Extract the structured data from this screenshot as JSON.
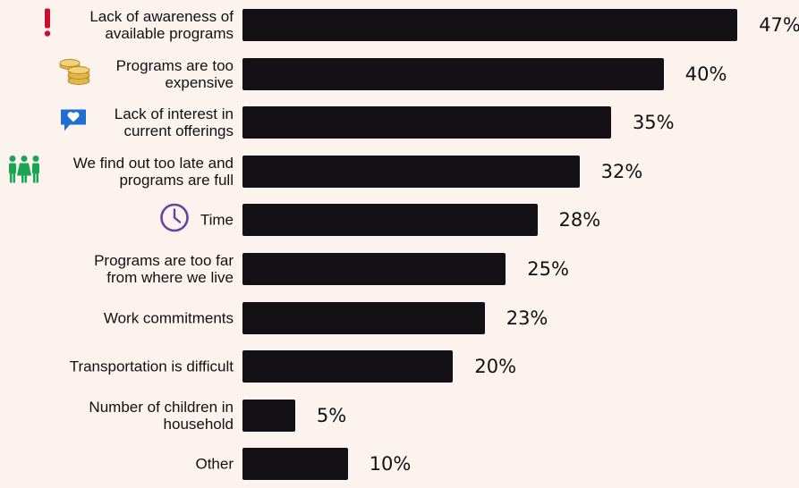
{
  "chart_data": {
    "type": "bar",
    "orientation": "horizontal",
    "categories": [
      "Lack of awareness of\navailable programs",
      "Programs are too\nexpensive",
      "Lack of interest in\ncurrent offerings",
      "We find out too late and\nprograms are full",
      "Time",
      "Programs are too far\nfrom where we live",
      "Work commitments",
      "Transportation is difficult",
      "Number of children in\nhousehold",
      "Other"
    ],
    "values": [
      47,
      40,
      35,
      32,
      28,
      25,
      23,
      20,
      5,
      10
    ],
    "value_labels": [
      "47%",
      "40%",
      "35%",
      "32%",
      "28%",
      "25%",
      "23%",
      "20%",
      "5%",
      "10%"
    ],
    "icons": [
      "exclamation-icon",
      "coins-icon",
      "heart-speech-bubble-icon",
      "family-icon",
      "clock-icon",
      "",
      "",
      "",
      "",
      ""
    ],
    "xlim": [
      0,
      50
    ],
    "grid": false,
    "bar_color": "#131116",
    "icon_colors": {
      "exclamation": "#c8102e",
      "coins": "#e0b64a",
      "heart_bubble": "#1f6fd1",
      "family": "#1aa552",
      "clock": "#6b3fa0"
    }
  }
}
